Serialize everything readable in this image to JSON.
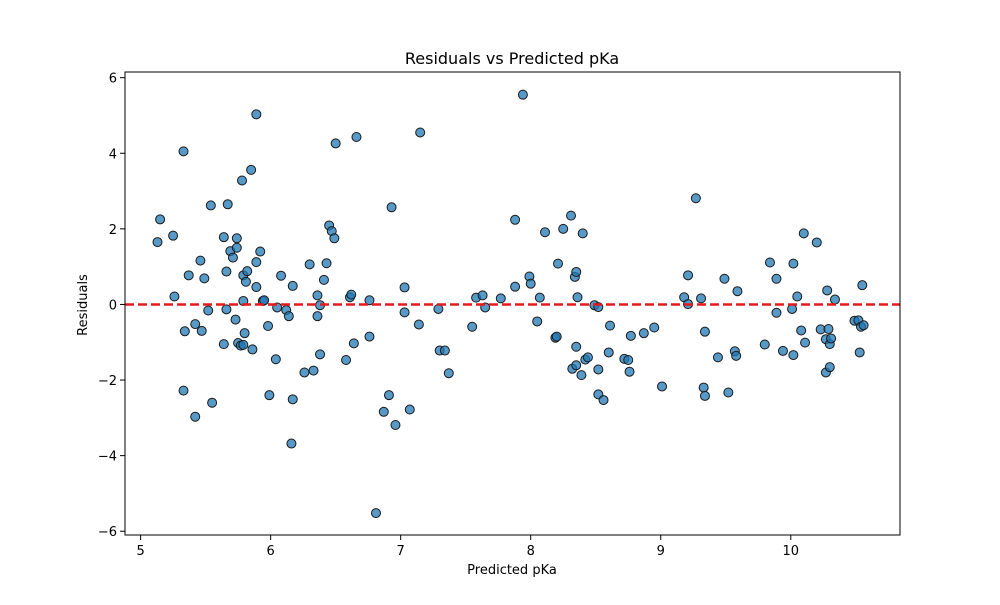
{
  "chart_data": {
    "type": "scatter",
    "title": "Residuals vs Predicted pKa",
    "xlabel": "Predicted pKa",
    "ylabel": "Residuals",
    "xlim": [
      4.88,
      10.84
    ],
    "ylim": [
      -6.1,
      6.15
    ],
    "x_ticks": [
      5,
      6,
      7,
      8,
      9,
      10
    ],
    "x_tick_labels": [
      "5",
      "6",
      "7",
      "8",
      "9",
      "10"
    ],
    "y_ticks": [
      -6,
      -4,
      -2,
      0,
      2,
      4,
      6
    ],
    "y_tick_labels": [
      "−6",
      "−4",
      "−2",
      "0",
      "2",
      "4",
      "6"
    ],
    "grid": false,
    "reference_line": {
      "y": 0,
      "style": "dashed",
      "color": "#e41a1c"
    },
    "marker_color": "#1f77b4",
    "marker_edge_color": "#1a1a1a",
    "points": [
      {
        "x": 5.13,
        "y": 1.65
      },
      {
        "x": 5.15,
        "y": 2.25
      },
      {
        "x": 5.25,
        "y": 1.82
      },
      {
        "x": 5.26,
        "y": 0.21
      },
      {
        "x": 5.33,
        "y": 4.05
      },
      {
        "x": 5.34,
        "y": -0.71
      },
      {
        "x": 5.33,
        "y": -2.28
      },
      {
        "x": 5.37,
        "y": 0.77
      },
      {
        "x": 5.42,
        "y": -0.52
      },
      {
        "x": 5.42,
        "y": -2.97
      },
      {
        "x": 5.46,
        "y": 1.16
      },
      {
        "x": 5.47,
        "y": -0.7
      },
      {
        "x": 5.49,
        "y": 0.69
      },
      {
        "x": 5.52,
        "y": -0.16
      },
      {
        "x": 5.54,
        "y": 2.62
      },
      {
        "x": 5.55,
        "y": -2.6
      },
      {
        "x": 5.64,
        "y": 1.78
      },
      {
        "x": 5.64,
        "y": -1.05
      },
      {
        "x": 5.66,
        "y": 0.87
      },
      {
        "x": 5.66,
        "y": -0.13
      },
      {
        "x": 5.67,
        "y": 2.65
      },
      {
        "x": 5.69,
        "y": 1.41
      },
      {
        "x": 5.71,
        "y": 1.24
      },
      {
        "x": 5.73,
        "y": -0.4
      },
      {
        "x": 5.74,
        "y": 1.75
      },
      {
        "x": 5.74,
        "y": 1.5
      },
      {
        "x": 5.75,
        "y": -1.02
      },
      {
        "x": 5.77,
        "y": -1.09
      },
      {
        "x": 5.78,
        "y": 3.28
      },
      {
        "x": 5.79,
        "y": 0.77
      },
      {
        "x": 5.79,
        "y": 0.09
      },
      {
        "x": 5.79,
        "y": -1.07
      },
      {
        "x": 5.8,
        "y": -0.76
      },
      {
        "x": 5.81,
        "y": 0.6
      },
      {
        "x": 5.82,
        "y": 0.88
      },
      {
        "x": 5.85,
        "y": 3.56
      },
      {
        "x": 5.86,
        "y": -1.19
      },
      {
        "x": 5.89,
        "y": 1.12
      },
      {
        "x": 5.89,
        "y": 0.46
      },
      {
        "x": 5.89,
        "y": 5.03
      },
      {
        "x": 5.92,
        "y": 1.4
      },
      {
        "x": 5.94,
        "y": 0.09
      },
      {
        "x": 5.95,
        "y": 0.11
      },
      {
        "x": 5.98,
        "y": -0.57
      },
      {
        "x": 5.99,
        "y": -2.4
      },
      {
        "x": 6.04,
        "y": -1.45
      },
      {
        "x": 6.05,
        "y": -0.08
      },
      {
        "x": 6.08,
        "y": 0.76
      },
      {
        "x": 6.12,
        "y": -0.15
      },
      {
        "x": 6.14,
        "y": -0.31
      },
      {
        "x": 6.16,
        "y": -3.68
      },
      {
        "x": 6.17,
        "y": 0.49
      },
      {
        "x": 6.17,
        "y": -2.51
      },
      {
        "x": 6.26,
        "y": -1.8
      },
      {
        "x": 6.3,
        "y": 1.06
      },
      {
        "x": 6.33,
        "y": -1.75
      },
      {
        "x": 6.36,
        "y": 0.24
      },
      {
        "x": 6.36,
        "y": -0.31
      },
      {
        "x": 6.38,
        "y": -0.02
      },
      {
        "x": 6.38,
        "y": -1.32
      },
      {
        "x": 6.41,
        "y": 0.65
      },
      {
        "x": 6.43,
        "y": 1.09
      },
      {
        "x": 6.45,
        "y": 2.09
      },
      {
        "x": 6.47,
        "y": 1.94
      },
      {
        "x": 6.49,
        "y": 1.75
      },
      {
        "x": 6.5,
        "y": 4.26
      },
      {
        "x": 6.58,
        "y": -1.47
      },
      {
        "x": 6.61,
        "y": 0.19
      },
      {
        "x": 6.62,
        "y": 0.26
      },
      {
        "x": 6.64,
        "y": -1.03
      },
      {
        "x": 6.66,
        "y": 4.43
      },
      {
        "x": 6.76,
        "y": 0.11
      },
      {
        "x": 6.76,
        "y": -0.85
      },
      {
        "x": 6.81,
        "y": -5.52
      },
      {
        "x": 6.87,
        "y": -2.84
      },
      {
        "x": 6.91,
        "y": -2.4
      },
      {
        "x": 6.93,
        "y": 2.57
      },
      {
        "x": 6.96,
        "y": -3.19
      },
      {
        "x": 7.03,
        "y": 0.45
      },
      {
        "x": 7.03,
        "y": -0.21
      },
      {
        "x": 7.07,
        "y": -2.78
      },
      {
        "x": 7.14,
        "y": -0.53
      },
      {
        "x": 7.15,
        "y": 4.55
      },
      {
        "x": 7.29,
        "y": -0.12
      },
      {
        "x": 7.3,
        "y": -1.22
      },
      {
        "x": 7.34,
        "y": -1.22
      },
      {
        "x": 7.37,
        "y": -1.82
      },
      {
        "x": 7.55,
        "y": -0.59
      },
      {
        "x": 7.58,
        "y": 0.18
      },
      {
        "x": 7.63,
        "y": 0.24
      },
      {
        "x": 7.65,
        "y": -0.08
      },
      {
        "x": 7.77,
        "y": 0.16
      },
      {
        "x": 7.88,
        "y": 0.47
      },
      {
        "x": 7.88,
        "y": 2.24
      },
      {
        "x": 7.94,
        "y": 5.55
      },
      {
        "x": 7.99,
        "y": 0.74
      },
      {
        "x": 8.0,
        "y": 0.55
      },
      {
        "x": 8.05,
        "y": -0.45
      },
      {
        "x": 8.07,
        "y": 0.18
      },
      {
        "x": 8.11,
        "y": 1.91
      },
      {
        "x": 8.19,
        "y": -0.88
      },
      {
        "x": 8.2,
        "y": -0.85
      },
      {
        "x": 8.21,
        "y": 1.08
      },
      {
        "x": 8.25,
        "y": 2.0
      },
      {
        "x": 8.31,
        "y": 2.35
      },
      {
        "x": 8.32,
        "y": -1.7
      },
      {
        "x": 8.34,
        "y": 0.73
      },
      {
        "x": 8.35,
        "y": 0.86
      },
      {
        "x": 8.35,
        "y": -1.12
      },
      {
        "x": 8.35,
        "y": -1.61
      },
      {
        "x": 8.36,
        "y": 0.19
      },
      {
        "x": 8.39,
        "y": -1.87
      },
      {
        "x": 8.4,
        "y": 1.88
      },
      {
        "x": 8.42,
        "y": -1.46
      },
      {
        "x": 8.44,
        "y": -1.4
      },
      {
        "x": 8.49,
        "y": -0.02
      },
      {
        "x": 8.52,
        "y": -0.07
      },
      {
        "x": 8.52,
        "y": -1.72
      },
      {
        "x": 8.52,
        "y": -2.38
      },
      {
        "x": 8.56,
        "y": -2.53
      },
      {
        "x": 8.6,
        "y": -1.27
      },
      {
        "x": 8.61,
        "y": -0.56
      },
      {
        "x": 8.72,
        "y": -1.44
      },
      {
        "x": 8.75,
        "y": -1.47
      },
      {
        "x": 8.76,
        "y": -1.78
      },
      {
        "x": 8.77,
        "y": -0.83
      },
      {
        "x": 8.87,
        "y": -0.76
      },
      {
        "x": 8.95,
        "y": -0.61
      },
      {
        "x": 9.01,
        "y": -2.17
      },
      {
        "x": 9.18,
        "y": 0.19
      },
      {
        "x": 9.21,
        "y": 0.77
      },
      {
        "x": 9.21,
        "y": 0.01
      },
      {
        "x": 9.27,
        "y": 2.81
      },
      {
        "x": 9.31,
        "y": 0.16
      },
      {
        "x": 9.33,
        "y": -2.2
      },
      {
        "x": 9.34,
        "y": -2.42
      },
      {
        "x": 9.34,
        "y": -0.72
      },
      {
        "x": 9.44,
        "y": -1.4
      },
      {
        "x": 9.49,
        "y": 0.68
      },
      {
        "x": 9.52,
        "y": -2.33
      },
      {
        "x": 9.57,
        "y": -1.24
      },
      {
        "x": 9.58,
        "y": -1.36
      },
      {
        "x": 9.59,
        "y": 0.35
      },
      {
        "x": 9.8,
        "y": -1.06
      },
      {
        "x": 9.84,
        "y": 1.11
      },
      {
        "x": 9.89,
        "y": 0.68
      },
      {
        "x": 9.89,
        "y": -0.22
      },
      {
        "x": 9.94,
        "y": -1.23
      },
      {
        "x": 10.01,
        "y": -0.12
      },
      {
        "x": 10.02,
        "y": -1.34
      },
      {
        "x": 10.02,
        "y": 1.08
      },
      {
        "x": 10.05,
        "y": 0.21
      },
      {
        "x": 10.08,
        "y": -0.69
      },
      {
        "x": 10.1,
        "y": 1.88
      },
      {
        "x": 10.11,
        "y": -1.01
      },
      {
        "x": 10.2,
        "y": 1.64
      },
      {
        "x": 10.23,
        "y": -0.66
      },
      {
        "x": 10.27,
        "y": -0.92
      },
      {
        "x": 10.27,
        "y": -1.8
      },
      {
        "x": 10.28,
        "y": 0.37
      },
      {
        "x": 10.29,
        "y": -0.65
      },
      {
        "x": 10.3,
        "y": -1.66
      },
      {
        "x": 10.3,
        "y": -1.05
      },
      {
        "x": 10.31,
        "y": -0.9
      },
      {
        "x": 10.34,
        "y": 0.13
      },
      {
        "x": 10.49,
        "y": -0.43
      },
      {
        "x": 10.52,
        "y": -0.42
      },
      {
        "x": 10.53,
        "y": -1.27
      },
      {
        "x": 10.54,
        "y": -0.59
      },
      {
        "x": 10.55,
        "y": 0.51
      },
      {
        "x": 10.56,
        "y": -0.55
      }
    ]
  }
}
